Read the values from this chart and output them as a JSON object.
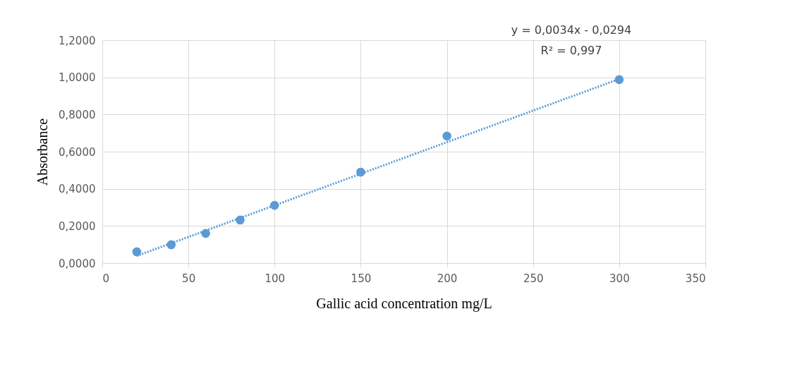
{
  "chart_data": {
    "type": "scatter",
    "xlabel": "Gallic acid concentration mg/L",
    "ylabel": "Absorbance",
    "xlim": [
      0,
      350
    ],
    "xticks": [
      0,
      50,
      100,
      150,
      200,
      250,
      300,
      350
    ],
    "ylim": [
      0,
      1.2
    ],
    "yticks": [
      {
        "value": 0,
        "label": "0,0000"
      },
      {
        "value": 0.2,
        "label": "0,2000"
      },
      {
        "value": 0.4,
        "label": "0,4000"
      },
      {
        "value": 0.6,
        "label": "0,6000"
      },
      {
        "value": 0.8,
        "label": "0,8000"
      },
      {
        "value": 1.0,
        "label": "1,0000"
      },
      {
        "value": 1.2,
        "label": "1,2000"
      }
    ],
    "grid": true,
    "legend": false,
    "series": [
      {
        "color": "#5b9bd5",
        "marker": "circle",
        "x": [
          20,
          40,
          60,
          80,
          100,
          150,
          200,
          300
        ],
        "values": [
          0.061,
          0.099,
          0.16,
          0.232,
          0.311,
          0.49,
          0.684,
          0.988
        ]
      },
      {
        "type": "line",
        "color": "#5b9bd5",
        "line_style": "dotted",
        "x": [
          20,
          300
        ],
        "marker": "none",
        "values": [
          0.039,
          0.991
        ]
      }
    ],
    "annotations": [
      "y = 0,0034x - 0,0294",
      "R² = 0,997"
    ]
  }
}
